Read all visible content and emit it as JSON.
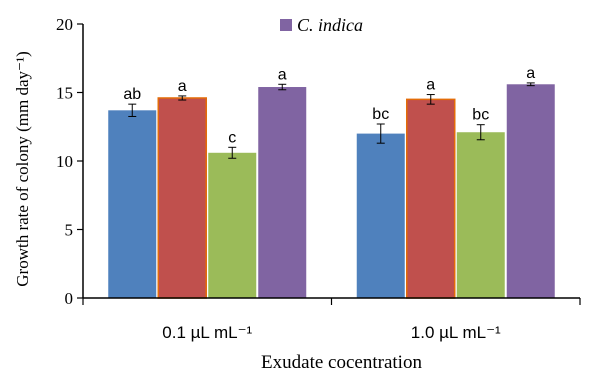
{
  "chart_data": {
    "type": "bar",
    "title": "",
    "xlabel": "Exudate cocentration",
    "ylabel": "Growth rate of colony (mm day⁻¹)",
    "ylim": [
      0,
      20
    ],
    "yticks": [
      0,
      5,
      10,
      15,
      20
    ],
    "grid": false,
    "legend": {
      "placement": "top-center",
      "visible_entry": "C. indica",
      "marker_color": "#8064a2"
    },
    "categories": [
      "0.1 µL mL⁻¹",
      "1.0 µL mL⁻¹"
    ],
    "series": [
      {
        "color": "#4f81bd",
        "values": [
          13.7,
          12.0
        ],
        "errors": [
          0.45,
          0.7
        ],
        "labels": [
          "ab",
          "bc"
        ]
      },
      {
        "color": "#c0504d",
        "values": [
          14.6,
          14.5
        ],
        "errors": [
          0.15,
          0.35
        ],
        "labels": [
          "a",
          "a"
        ]
      },
      {
        "color": "#9bbb59",
        "values": [
          10.6,
          12.1
        ],
        "errors": [
          0.4,
          0.55
        ],
        "labels": [
          "c",
          "bc"
        ]
      },
      {
        "name": "C. indica",
        "color": "#8064a2",
        "values": [
          15.4,
          15.6
        ],
        "errors": [
          0.2,
          0.1
        ],
        "labels": [
          "a",
          "a"
        ]
      }
    ]
  }
}
